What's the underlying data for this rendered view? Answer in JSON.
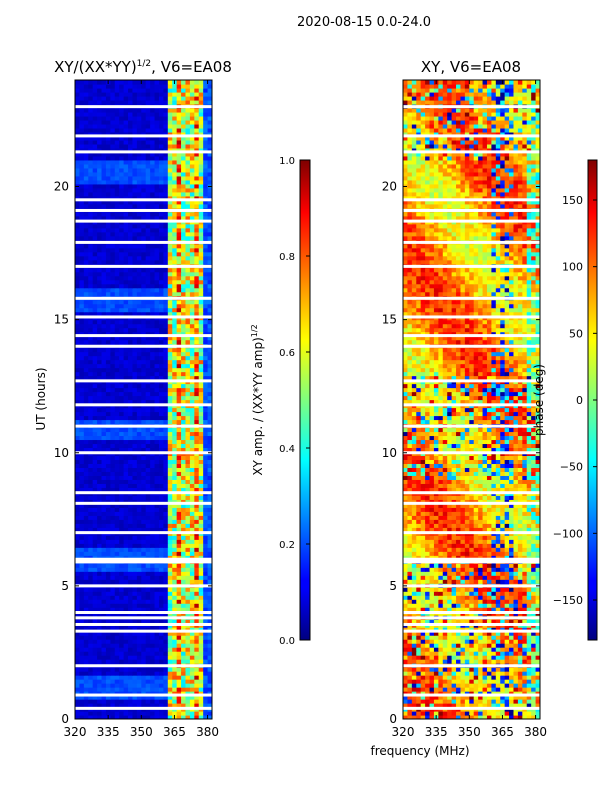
{
  "figure": {
    "suptitle": "2020-08-15 0.0-24.0",
    "xlabel": "frequency (MHz)"
  },
  "chart_data": [
    {
      "type": "heatmap",
      "title_main": "XY/(XX*YY)",
      "title_sup": "1/2",
      "title_tail": ", V6=EA08",
      "xlabel": "",
      "ylabel": "UT (hours)",
      "xlim": [
        320,
        382
      ],
      "ylim": [
        0,
        24
      ],
      "xticks": [
        "320",
        "335",
        "350",
        "365",
        "380"
      ],
      "xtick_values": [
        320,
        335,
        350,
        365,
        380
      ],
      "yticks": [
        "0",
        "5",
        "10",
        "15",
        "20"
      ],
      "ytick_values": [
        0,
        5,
        10,
        15,
        20
      ],
      "colorbar": {
        "label_main": "XY amp. / (XX*YY amp)",
        "label_sup": "1/2",
        "range": [
          0.0,
          1.0
        ],
        "ticks": [
          "0.0",
          "0.2",
          "0.4",
          "0.6",
          "0.8",
          "1.0"
        ],
        "tick_values": [
          0.0,
          0.2,
          0.4,
          0.6,
          0.8,
          1.0
        ]
      },
      "blanked_hours": [
        0.4,
        0.9,
        2.0,
        3.3,
        3.55,
        3.8,
        4.0,
        5.0,
        5.9,
        6.0,
        7.0,
        8.1,
        8.5,
        10.0,
        11.0,
        11.8,
        12.7,
        14.0,
        14.4,
        15.1,
        15.8,
        17.0,
        17.9,
        18.7,
        19.1,
        19.5,
        21.3,
        21.9,
        23.0
      ]
    },
    {
      "type": "heatmap",
      "title": "XY, V6=EA08",
      "xlabel": "",
      "ylabel": "",
      "xlim": [
        320,
        382
      ],
      "ylim": [
        0,
        24
      ],
      "xticks": [
        "320",
        "335",
        "350",
        "365",
        "380"
      ],
      "xtick_values": [
        320,
        335,
        350,
        365,
        380
      ],
      "yticks": [
        "0",
        "5",
        "10",
        "15",
        "20"
      ],
      "ytick_values": [
        0,
        5,
        10,
        15,
        20
      ],
      "colorbar": {
        "label": "phase (deg)",
        "range": [
          -180,
          180
        ],
        "ticks": [
          "−150",
          "−100",
          "−50",
          "0",
          "50",
          "100",
          "150"
        ],
        "tick_values": [
          -150,
          -100,
          -50,
          0,
          50,
          100,
          150
        ]
      },
      "blanked_hours": [
        0.4,
        0.9,
        2.0,
        3.3,
        3.55,
        3.8,
        4.0,
        5.0,
        5.9,
        6.0,
        7.0,
        8.1,
        8.5,
        10.0,
        11.0,
        11.8,
        12.7,
        14.0,
        14.4,
        15.1,
        15.8,
        17.0,
        17.9,
        18.7,
        19.1,
        19.5,
        21.3,
        21.9,
        23.0
      ]
    }
  ]
}
